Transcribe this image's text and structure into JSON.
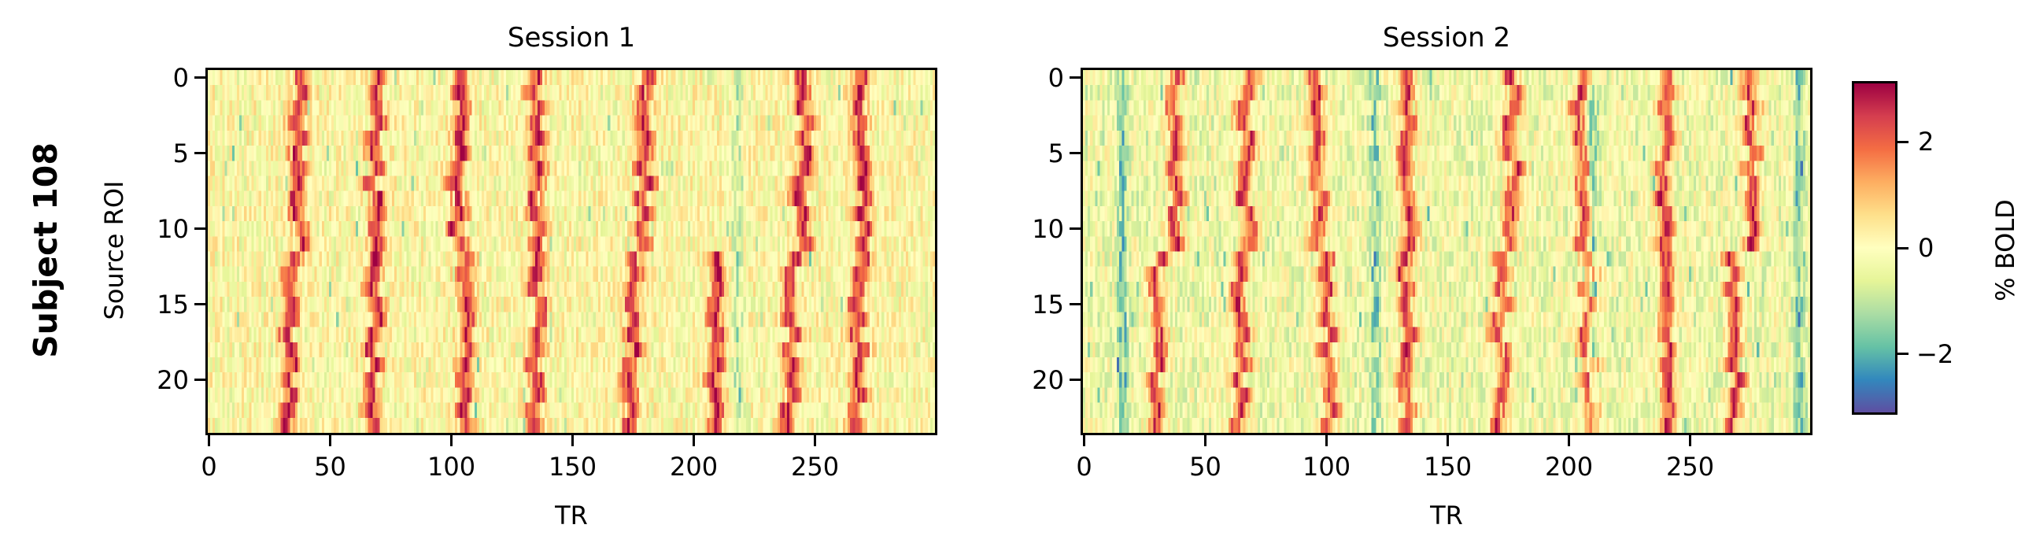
{
  "figure": {
    "row_label": "Subject 108",
    "ylabel": "Source ROI",
    "xlabel": "TR",
    "colorbar_label": "% BOLD",
    "colormap": "Spectral_r"
  },
  "panels": [
    {
      "title": "Session 1",
      "xticks": [
        "0",
        "50",
        "100",
        "150",
        "200",
        "250"
      ],
      "yticks": [
        "0",
        "5",
        "10",
        "15",
        "20"
      ]
    },
    {
      "title": "Session 2",
      "xticks": [
        "0",
        "50",
        "100",
        "150",
        "200",
        "250"
      ],
      "yticks": [
        "0",
        "5",
        "10",
        "15",
        "20"
      ]
    }
  ],
  "colorbar": {
    "ticks": [
      "2",
      "0",
      "−2"
    ],
    "vmin": -3.1,
    "vmax": 3.1,
    "colors": [
      "#5e4fa2",
      "#3288bd",
      "#66c2a5",
      "#abdda4",
      "#e6f598",
      "#ffffbf",
      "#fee08b",
      "#fdae61",
      "#f46d43",
      "#d53e4f",
      "#9e0142"
    ]
  },
  "chart_data": [
    {
      "type": "heatmap",
      "title": "Session 1",
      "xlabel": "TR",
      "ylabel": "Source ROI",
      "x_range": [
        0,
        299
      ],
      "y_range": [
        0,
        23
      ],
      "n_rows": 24,
      "n_cols": 300,
      "value_range": [
        -3.1,
        3.1
      ],
      "colorbar_label": "% BOLD",
      "description": "Vertical bands of high %BOLD (red) recurring across ROIs; bands shift slightly between ROI groups 0-11 and 12-23",
      "event_peaks_TR_rois_0_11": [
        37,
        68,
        103,
        135,
        180,
        245,
        270
      ],
      "event_peaks_TR_rois_12_23": [
        33,
        68,
        105,
        135,
        175,
        208,
        240,
        268
      ],
      "low_band_TR": [
        218
      ]
    },
    {
      "type": "heatmap",
      "title": "Session 2",
      "xlabel": "TR",
      "ylabel": "Source ROI",
      "x_range": [
        0,
        299
      ],
      "y_range": [
        0,
        23
      ],
      "n_rows": 24,
      "n_cols": 300,
      "value_range": [
        -3.1,
        3.1
      ],
      "colorbar_label": "% BOLD",
      "description": "Vertical bands of high %BOLD recurring across ROIs; more negative (blue) values than session 1",
      "event_peaks_TR_rois_0_11": [
        38,
        67,
        96,
        133,
        177,
        205,
        240,
        275
      ],
      "event_peaks_TR_rois_12_23": [
        30,
        64,
        101,
        133,
        172,
        208,
        241,
        268
      ],
      "low_band_TR": [
        16,
        120,
        210,
        295
      ]
    }
  ]
}
